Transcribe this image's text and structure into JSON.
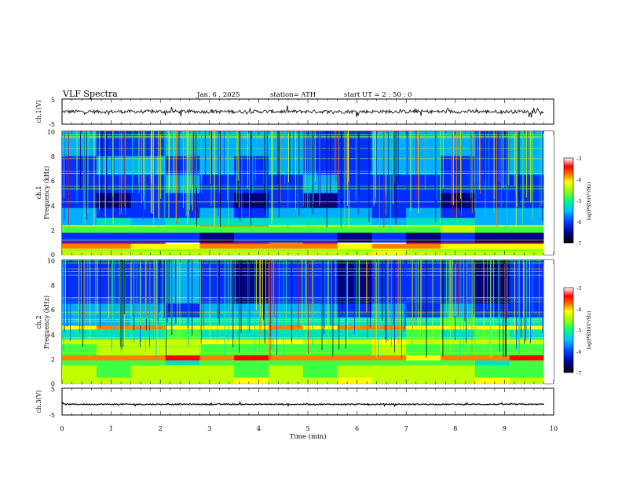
{
  "header": {
    "title": "VLF  Spectra",
    "date": "Jan. 6  , 2025",
    "station": "station= ATH",
    "start": "start  UT  =   2  : 50 : 0"
  },
  "chart_data": [
    {
      "type": "line",
      "panel": "ch1-waveform",
      "ylabel": "ch.1(V)",
      "ylim": [
        -5,
        5
      ],
      "y_ticks": [
        "5",
        "-5"
      ],
      "xlim": [
        0,
        10
      ],
      "series": [
        {
          "color": "#000000",
          "level_approx": 0.0,
          "noise_amplitude_approx": 1.0,
          "x_end": 9.8
        }
      ]
    },
    {
      "type": "heatmap",
      "panel": "ch1-spectrogram",
      "ylabel": "ch.1\nFrequency  (kHz)",
      "ylim": [
        0,
        10
      ],
      "y_ticks": [
        "0",
        "2",
        "4",
        "6",
        "8",
        "10"
      ],
      "xlim": [
        0,
        10
      ],
      "x_end": 9.8,
      "colorbar": {
        "label": "log(PSD)(V²/Hz)",
        "range": [
          -7,
          -3
        ],
        "ticks": [
          "-3",
          "-4",
          "-5",
          "-6",
          "-7"
        ]
      },
      "bands_khz_logpsd": [
        [
          0.0,
          0.5,
          -4.6
        ],
        [
          0.5,
          0.9,
          -4.0
        ],
        [
          0.9,
          1.0,
          -3.4
        ],
        [
          1.0,
          1.8,
          -6.3
        ],
        [
          1.8,
          2.3,
          -5.0
        ],
        [
          2.3,
          2.4,
          -4.2
        ],
        [
          2.4,
          3.0,
          -5.6
        ],
        [
          3.0,
          3.8,
          -6.0
        ],
        [
          3.8,
          5.0,
          -6.3
        ],
        [
          5.0,
          6.5,
          -6.1
        ],
        [
          6.5,
          8.0,
          -6.0
        ],
        [
          8.0,
          10.0,
          -5.9
        ]
      ]
    },
    {
      "type": "heatmap",
      "panel": "ch2-spectrogram",
      "ylabel": "ch.2\nFrequency  (kHz)",
      "ylim": [
        0,
        10
      ],
      "y_ticks": [
        "0",
        "2",
        "4",
        "6",
        "8",
        "10"
      ],
      "xlim": [
        0,
        10
      ],
      "x_end": 9.8,
      "colorbar": {
        "label": "log(PSD)(V²/Hz)",
        "range": [
          -7,
          -3
        ],
        "ticks": [
          "-3",
          "-4",
          "-5",
          "-6",
          "-7"
        ]
      },
      "bands_khz_logpsd": [
        [
          0.0,
          0.5,
          -4.5
        ],
        [
          0.5,
          1.5,
          -4.9
        ],
        [
          1.5,
          1.9,
          -5.0
        ],
        [
          1.9,
          2.3,
          -3.8
        ],
        [
          2.3,
          3.2,
          -4.9
        ],
        [
          3.2,
          3.6,
          -4.6
        ],
        [
          3.6,
          4.4,
          -5.3
        ],
        [
          4.4,
          4.7,
          -4.1
        ],
        [
          4.7,
          5.4,
          -5.4
        ],
        [
          5.4,
          6.5,
          -6.0
        ],
        [
          6.5,
          10.0,
          -6.2
        ]
      ]
    },
    {
      "type": "line",
      "panel": "ch3-waveform",
      "ylabel": "ch.3(V)",
      "ylim": [
        -5,
        5
      ],
      "y_ticks": [
        "5",
        "0",
        "-5"
      ],
      "xlim": [
        0,
        10
      ],
      "xlabel": "Time  (min)",
      "x_ticks": [
        "0",
        "1",
        "2",
        "3",
        "4",
        "5",
        "6",
        "7",
        "8",
        "9",
        "10"
      ],
      "series": [
        {
          "color": "#000000",
          "level_approx": -1.0,
          "noise_amplitude_approx": 0.3,
          "x_end": 9.8
        }
      ]
    }
  ],
  "colormap": [
    "#000000",
    "#000080",
    "#0030ff",
    "#00b0ff",
    "#00e0c0",
    "#40ff40",
    "#c0ff00",
    "#ffff00",
    "#ff8000",
    "#ff0000",
    "#ffffff"
  ]
}
